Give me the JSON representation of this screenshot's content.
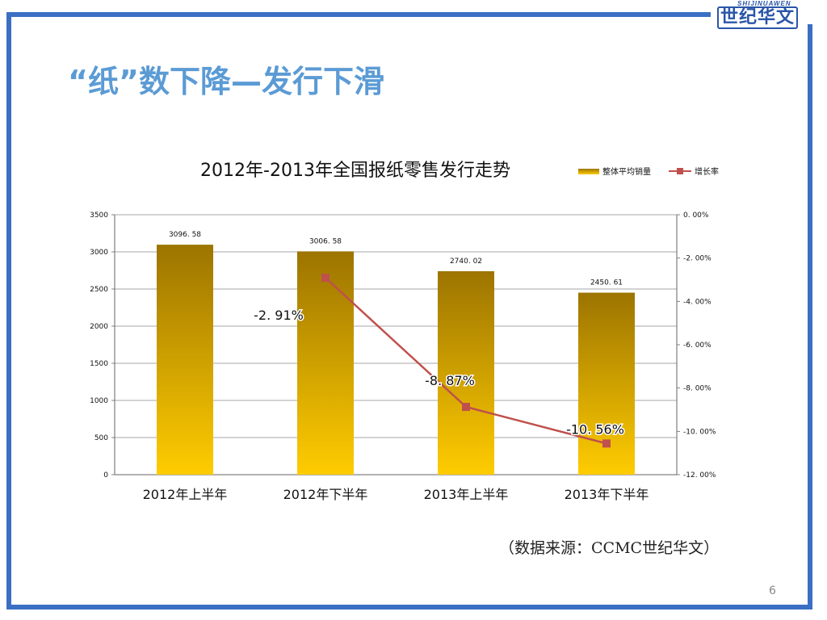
{
  "slide": {
    "title": "“纸”数下降—发行下滑",
    "source": "（数据来源：CCMC世纪华文）",
    "page_number": "6",
    "logo_text": "世纪华文",
    "logo_en": "SHIJINUAWEN"
  },
  "colors": {
    "frame": "#3b6fc4",
    "title": "#5b9bd5",
    "bar_top": "#9c7400",
    "bar_bottom": "#ffcc00",
    "line": "#c0504d"
  },
  "chart_data": {
    "type": "bar",
    "title": "2012年-2013年全国报纸零售发行走势",
    "categories": [
      "2012年上半年",
      "2012年下半年",
      "2013年上半年",
      "2013年下半年"
    ],
    "series": [
      {
        "name": "整体平均销量",
        "type": "bar",
        "axis": "left",
        "values": [
          3096.58,
          3006.58,
          2740.02,
          2450.61
        ],
        "labels": [
          "3096. 58",
          "3006. 58",
          "2740. 02",
          "2450. 61"
        ]
      },
      {
        "name": "增长率",
        "type": "line",
        "axis": "right",
        "values": [
          null,
          -2.91,
          -8.87,
          -10.56
        ],
        "labels": [
          "",
          "-2. 91%",
          "-8. 87%",
          "-10. 56%"
        ]
      }
    ],
    "ylim_left": [
      0,
      3500
    ],
    "yticks_left": [
      "0",
      "500",
      "1000",
      "1500",
      "2000",
      "2500",
      "3000",
      "3500"
    ],
    "ylim_right": [
      -12,
      0
    ],
    "yticks_right": [
      "-12. 00%",
      "-10. 00%",
      "-8. 00%",
      "-6. 00%",
      "-4. 00%",
      "-2. 00%",
      "0. 00%"
    ],
    "grid": true,
    "legend_position": "top-right"
  }
}
